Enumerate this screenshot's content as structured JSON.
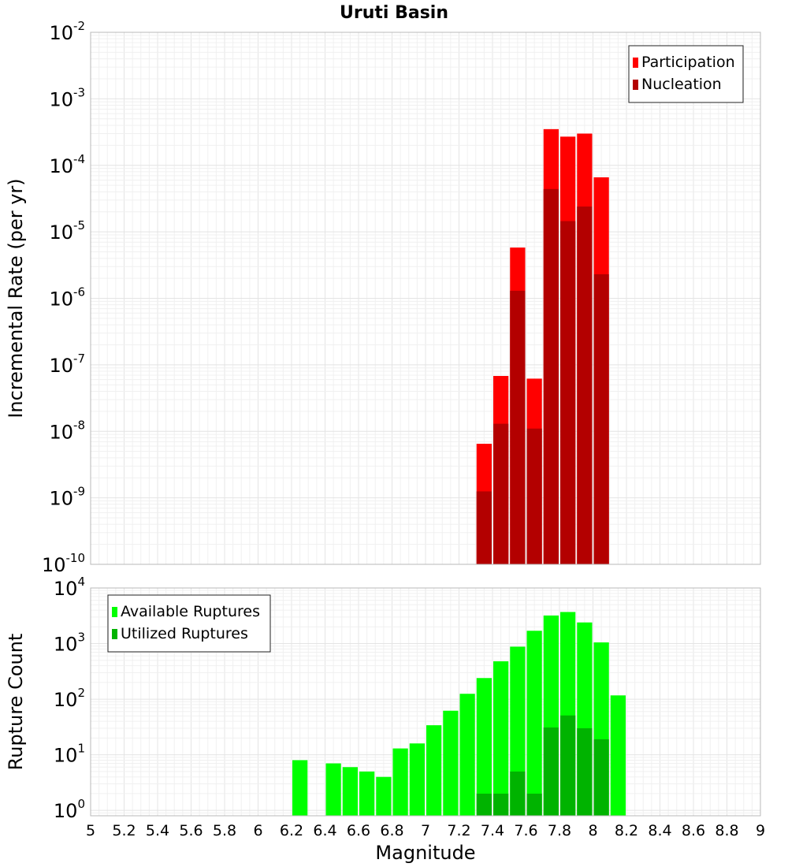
{
  "chart_data": [
    {
      "type": "bar",
      "title": "Uruti Basin",
      "ylabel": "Incremental Rate (per yr)",
      "xlabel": "",
      "y_scale": "log",
      "xlim": [
        5,
        9
      ],
      "ylim": [
        1e-10,
        0.01
      ],
      "grid": true,
      "legend_position": "top-right",
      "y_tick_labels": [
        {
          "base": "10",
          "exp": "-10"
        },
        {
          "base": "10",
          "exp": "-9"
        },
        {
          "base": "10",
          "exp": "-8"
        },
        {
          "base": "10",
          "exp": "-7"
        },
        {
          "base": "10",
          "exp": "-6"
        },
        {
          "base": "10",
          "exp": "-5"
        },
        {
          "base": "10",
          "exp": "-4"
        },
        {
          "base": "10",
          "exp": "-3"
        },
        {
          "base": "10",
          "exp": "-2"
        }
      ],
      "bin_width": 0.1,
      "series": [
        {
          "name": "Participation",
          "color": "#ff0000",
          "x": [
            7.35,
            7.45,
            7.55,
            7.65,
            7.75,
            7.85,
            7.95,
            8.05
          ],
          "values": [
            6.5e-09,
            6.8e-08,
            5.8e-06,
            6.2e-08,
            0.00035,
            0.00027,
            0.0003,
            6.6e-05
          ]
        },
        {
          "name": "Nucleation",
          "color": "#b30000",
          "x": [
            7.35,
            7.45,
            7.55,
            7.65,
            7.75,
            7.85,
            7.95,
            8.05
          ],
          "values": [
            1.25e-09,
            1.3e-08,
            1.3e-06,
            1.1e-08,
            4.4e-05,
            1.45e-05,
            2.4e-05,
            2.3e-06
          ]
        }
      ]
    },
    {
      "type": "bar",
      "title": "",
      "ylabel": "Rupture Count",
      "xlabel": "Magnitude",
      "y_scale": "log",
      "xlim": [
        5,
        9
      ],
      "ylim": [
        0.8,
        10000.0
      ],
      "grid": true,
      "legend_position": "top-left",
      "x_tick_labels": [
        "5",
        "5.2",
        "5.4",
        "5.6",
        "5.8",
        "6",
        "6.2",
        "6.4",
        "6.6",
        "6.8",
        "7",
        "7.2",
        "7.4",
        "7.6",
        "7.8",
        "8",
        "8.2",
        "8.4",
        "8.6",
        "8.8",
        "9"
      ],
      "y_tick_labels": [
        {
          "base": "10",
          "exp": "0"
        },
        {
          "base": "10",
          "exp": "1"
        },
        {
          "base": "10",
          "exp": "2"
        },
        {
          "base": "10",
          "exp": "3"
        },
        {
          "base": "10",
          "exp": "4"
        }
      ],
      "bin_width": 0.1,
      "series": [
        {
          "name": "Available Ruptures",
          "color": "#00ff00",
          "x": [
            6.25,
            6.45,
            6.55,
            6.65,
            6.75,
            6.85,
            6.95,
            7.05,
            7.15,
            7.25,
            7.35,
            7.45,
            7.55,
            7.65,
            7.75,
            7.85,
            7.95,
            8.05,
            8.15
          ],
          "values": [
            8,
            7,
            6,
            5,
            4,
            13,
            16,
            34,
            62,
            125,
            240,
            480,
            880,
            1700,
            3200,
            3700,
            2400,
            1050,
            117
          ]
        },
        {
          "name": "Utilized Ruptures",
          "color": "#00b300",
          "x": [
            7.35,
            7.45,
            7.55,
            7.65,
            7.75,
            7.85,
            7.95,
            8.05
          ],
          "values": [
            2,
            2,
            5,
            2,
            31,
            51,
            30,
            19
          ]
        }
      ]
    }
  ]
}
